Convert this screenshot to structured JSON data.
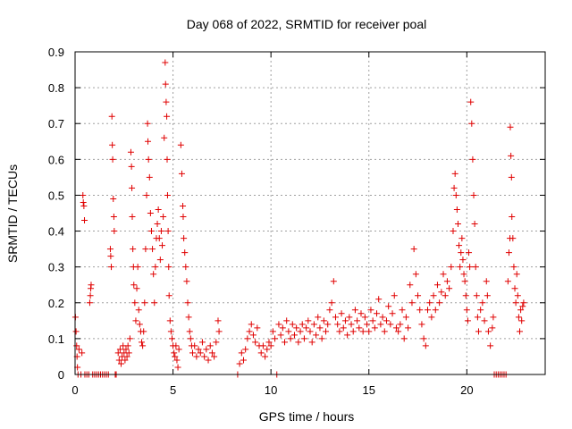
{
  "chart_data": {
    "type": "scatter",
    "title": "Day 068 of 2022, SRMTID for receiver poal",
    "xlabel": "GPS time / hours",
    "ylabel": "SRMTID / TECUs",
    "xlim": [
      0,
      24
    ],
    "ylim": [
      0,
      0.9
    ],
    "x_ticks": [
      {
        "value": 0,
        "label": "0"
      },
      {
        "value": 5,
        "label": "5"
      },
      {
        "value": 10,
        "label": "10"
      },
      {
        "value": 15,
        "label": "15"
      },
      {
        "value": 20,
        "label": "20"
      }
    ],
    "y_ticks": [
      {
        "value": 0,
        "label": "0"
      },
      {
        "value": 0.1,
        "label": "0.1"
      },
      {
        "value": 0.2,
        "label": "0.2"
      },
      {
        "value": 0.3,
        "label": "0.3"
      },
      {
        "value": 0.4,
        "label": "0.4"
      },
      {
        "value": 0.5,
        "label": "0.5"
      },
      {
        "value": 0.6,
        "label": "0.6"
      },
      {
        "value": 0.7,
        "label": "0.7"
      },
      {
        "value": 0.8,
        "label": "0.8"
      },
      {
        "value": 0.9,
        "label": "0.9"
      }
    ],
    "grid": true,
    "marker": "plus",
    "series": [
      {
        "name": "SRMTID",
        "color": "#e00000",
        "points": [
          [
            0.02,
            0.16
          ],
          [
            0.05,
            0.12
          ],
          [
            0.08,
            0.08
          ],
          [
            0.1,
            0.05
          ],
          [
            0.12,
            0.02
          ],
          [
            0.15,
            0.0
          ],
          [
            0.2,
            0.07
          ],
          [
            0.3,
            0.0
          ],
          [
            0.35,
            0.06
          ],
          [
            0.4,
            0.5
          ],
          [
            0.42,
            0.48
          ],
          [
            0.45,
            0.47
          ],
          [
            0.48,
            0.43
          ],
          [
            0.5,
            0.0
          ],
          [
            0.6,
            0.0
          ],
          [
            0.7,
            0.0
          ],
          [
            0.75,
            0.2
          ],
          [
            0.78,
            0.22
          ],
          [
            0.8,
            0.24
          ],
          [
            0.82,
            0.25
          ],
          [
            0.9,
            0.0
          ],
          [
            1.0,
            0.0
          ],
          [
            1.1,
            0.0
          ],
          [
            1.2,
            0.0
          ],
          [
            1.3,
            0.0
          ],
          [
            1.4,
            0.0
          ],
          [
            1.5,
            0.0
          ],
          [
            1.6,
            0.0
          ],
          [
            1.7,
            0.0
          ],
          [
            1.8,
            0.35
          ],
          [
            1.82,
            0.33
          ],
          [
            1.85,
            0.3
          ],
          [
            1.88,
            0.72
          ],
          [
            1.9,
            0.64
          ],
          [
            1.92,
            0.6
          ],
          [
            1.95,
            0.49
          ],
          [
            1.98,
            0.44
          ],
          [
            2.0,
            0.4
          ],
          [
            2.05,
            0.0
          ],
          [
            2.1,
            0.0
          ],
          [
            2.2,
            0.06
          ],
          [
            2.25,
            0.04
          ],
          [
            2.3,
            0.07
          ],
          [
            2.35,
            0.03
          ],
          [
            2.4,
            0.05
          ],
          [
            2.45,
            0.08
          ],
          [
            2.5,
            0.06
          ],
          [
            2.55,
            0.04
          ],
          [
            2.6,
            0.07
          ],
          [
            2.65,
            0.05
          ],
          [
            2.7,
            0.08
          ],
          [
            2.75,
            0.06
          ],
          [
            2.8,
            0.1
          ],
          [
            2.85,
            0.62
          ],
          [
            2.88,
            0.58
          ],
          [
            2.9,
            0.52
          ],
          [
            2.92,
            0.44
          ],
          [
            2.95,
            0.35
          ],
          [
            2.98,
            0.3
          ],
          [
            3.0,
            0.25
          ],
          [
            3.05,
            0.2
          ],
          [
            3.1,
            0.15
          ],
          [
            3.15,
            0.24
          ],
          [
            3.2,
            0.3
          ],
          [
            3.25,
            0.18
          ],
          [
            3.3,
            0.14
          ],
          [
            3.35,
            0.12
          ],
          [
            3.4,
            0.09
          ],
          [
            3.45,
            0.08
          ],
          [
            3.5,
            0.12
          ],
          [
            3.55,
            0.2
          ],
          [
            3.6,
            0.35
          ],
          [
            3.65,
            0.5
          ],
          [
            3.7,
            0.7
          ],
          [
            3.72,
            0.65
          ],
          [
            3.75,
            0.6
          ],
          [
            3.8,
            0.55
          ],
          [
            3.85,
            0.45
          ],
          [
            3.9,
            0.4
          ],
          [
            3.95,
            0.35
          ],
          [
            4.0,
            0.28
          ],
          [
            4.05,
            0.2
          ],
          [
            4.1,
            0.3
          ],
          [
            4.15,
            0.38
          ],
          [
            4.2,
            0.42
          ],
          [
            4.25,
            0.46
          ],
          [
            4.3,
            0.38
          ],
          [
            4.35,
            0.32
          ],
          [
            4.4,
            0.4
          ],
          [
            4.45,
            0.36
          ],
          [
            4.5,
            0.44
          ],
          [
            4.55,
            0.66
          ],
          [
            4.6,
            0.87
          ],
          [
            4.62,
            0.81
          ],
          [
            4.65,
            0.76
          ],
          [
            4.68,
            0.72
          ],
          [
            4.7,
            0.6
          ],
          [
            4.72,
            0.5
          ],
          [
            4.75,
            0.4
          ],
          [
            4.78,
            0.3
          ],
          [
            4.8,
            0.22
          ],
          [
            4.85,
            0.15
          ],
          [
            4.9,
            0.12
          ],
          [
            4.95,
            0.1
          ],
          [
            5.0,
            0.08
          ],
          [
            5.05,
            0.06
          ],
          [
            5.1,
            0.05
          ],
          [
            5.15,
            0.08
          ],
          [
            5.2,
            0.04
          ],
          [
            5.25,
            0.02
          ],
          [
            5.3,
            0.07
          ],
          [
            5.4,
            0.64
          ],
          [
            5.45,
            0.56
          ],
          [
            5.5,
            0.47
          ],
          [
            5.52,
            0.44
          ],
          [
            5.55,
            0.38
          ],
          [
            5.6,
            0.34
          ],
          [
            5.65,
            0.3
          ],
          [
            5.7,
            0.26
          ],
          [
            5.75,
            0.2
          ],
          [
            5.8,
            0.16
          ],
          [
            5.85,
            0.12
          ],
          [
            5.9,
            0.1
          ],
          [
            5.95,
            0.08
          ],
          [
            6.0,
            0.06
          ],
          [
            6.1,
            0.08
          ],
          [
            6.2,
            0.05
          ],
          [
            6.3,
            0.07
          ],
          [
            6.4,
            0.06
          ],
          [
            6.5,
            0.09
          ],
          [
            6.6,
            0.05
          ],
          [
            6.7,
            0.07
          ],
          [
            6.8,
            0.04
          ],
          [
            6.9,
            0.08
          ],
          [
            7.0,
            0.06
          ],
          [
            7.1,
            0.05
          ],
          [
            7.2,
            0.09
          ],
          [
            7.3,
            0.15
          ],
          [
            7.35,
            0.12
          ],
          [
            8.3,
            0.0
          ],
          [
            8.4,
            0.03
          ],
          [
            8.5,
            0.06
          ],
          [
            8.6,
            0.04
          ],
          [
            8.7,
            0.07
          ],
          [
            8.8,
            0.1
          ],
          [
            8.9,
            0.12
          ],
          [
            9.0,
            0.14
          ],
          [
            9.1,
            0.11
          ],
          [
            9.2,
            0.09
          ],
          [
            9.3,
            0.13
          ],
          [
            9.4,
            0.08
          ],
          [
            9.5,
            0.06
          ],
          [
            9.6,
            0.08
          ],
          [
            9.7,
            0.05
          ],
          [
            9.8,
            0.07
          ],
          [
            9.9,
            0.09
          ],
          [
            10.0,
            0.08
          ],
          [
            10.1,
            0.12
          ],
          [
            10.2,
            0.1
          ],
          [
            10.3,
            0.0
          ],
          [
            10.4,
            0.14
          ],
          [
            10.5,
            0.11
          ],
          [
            10.6,
            0.13
          ],
          [
            10.7,
            0.09
          ],
          [
            10.8,
            0.15
          ],
          [
            10.9,
            0.12
          ],
          [
            11.0,
            0.1
          ],
          [
            11.1,
            0.14
          ],
          [
            11.2,
            0.11
          ],
          [
            11.3,
            0.13
          ],
          [
            11.4,
            0.09
          ],
          [
            11.5,
            0.12
          ],
          [
            11.6,
            0.14
          ],
          [
            11.7,
            0.1
          ],
          [
            11.8,
            0.13
          ],
          [
            11.9,
            0.15
          ],
          [
            12.0,
            0.12
          ],
          [
            12.1,
            0.09
          ],
          [
            12.2,
            0.14
          ],
          [
            12.3,
            0.11
          ],
          [
            12.4,
            0.16
          ],
          [
            12.5,
            0.13
          ],
          [
            12.6,
            0.1
          ],
          [
            12.7,
            0.15
          ],
          [
            12.8,
            0.12
          ],
          [
            12.9,
            0.14
          ],
          [
            13.0,
            0.18
          ],
          [
            13.1,
            0.2
          ],
          [
            13.2,
            0.26
          ],
          [
            13.3,
            0.16
          ],
          [
            13.4,
            0.14
          ],
          [
            13.5,
            0.12
          ],
          [
            13.6,
            0.17
          ],
          [
            13.7,
            0.13
          ],
          [
            13.8,
            0.15
          ],
          [
            13.9,
            0.11
          ],
          [
            14.0,
            0.16
          ],
          [
            14.1,
            0.14
          ],
          [
            14.2,
            0.12
          ],
          [
            14.3,
            0.18
          ],
          [
            14.4,
            0.15
          ],
          [
            14.5,
            0.13
          ],
          [
            14.6,
            0.17
          ],
          [
            14.7,
            0.12
          ],
          [
            14.8,
            0.16
          ],
          [
            14.9,
            0.14
          ],
          [
            15.0,
            0.12
          ],
          [
            15.1,
            0.18
          ],
          [
            15.2,
            0.15
          ],
          [
            15.3,
            0.13
          ],
          [
            15.4,
            0.17
          ],
          [
            15.5,
            0.21
          ],
          [
            15.6,
            0.14
          ],
          [
            15.7,
            0.16
          ],
          [
            15.8,
            0.12
          ],
          [
            15.9,
            0.15
          ],
          [
            16.0,
            0.19
          ],
          [
            16.1,
            0.14
          ],
          [
            16.2,
            0.17
          ],
          [
            16.3,
            0.22
          ],
          [
            16.4,
            0.13
          ],
          [
            16.5,
            0.12
          ],
          [
            16.6,
            0.14
          ],
          [
            16.7,
            0.18
          ],
          [
            16.8,
            0.1
          ],
          [
            16.9,
            0.16
          ],
          [
            17.0,
            0.13
          ],
          [
            17.1,
            0.25
          ],
          [
            17.2,
            0.2
          ],
          [
            17.3,
            0.35
          ],
          [
            17.4,
            0.28
          ],
          [
            17.5,
            0.22
          ],
          [
            17.6,
            0.18
          ],
          [
            17.7,
            0.14
          ],
          [
            17.8,
            0.1
          ],
          [
            17.9,
            0.08
          ],
          [
            18.0,
            0.18
          ],
          [
            18.1,
            0.2
          ],
          [
            18.2,
            0.16
          ],
          [
            18.3,
            0.22
          ],
          [
            18.4,
            0.18
          ],
          [
            18.5,
            0.25
          ],
          [
            18.6,
            0.2
          ],
          [
            18.7,
            0.23
          ],
          [
            18.8,
            0.28
          ],
          [
            18.9,
            0.22
          ],
          [
            19.0,
            0.26
          ],
          [
            19.1,
            0.24
          ],
          [
            19.2,
            0.3
          ],
          [
            19.3,
            0.4
          ],
          [
            19.35,
            0.52
          ],
          [
            19.4,
            0.56
          ],
          [
            19.45,
            0.5
          ],
          [
            19.5,
            0.46
          ],
          [
            19.55,
            0.42
          ],
          [
            19.6,
            0.36
          ],
          [
            19.65,
            0.3
          ],
          [
            19.7,
            0.34
          ],
          [
            19.75,
            0.38
          ],
          [
            19.8,
            0.32
          ],
          [
            19.85,
            0.28
          ],
          [
            19.9,
            0.26
          ],
          [
            19.95,
            0.22
          ],
          [
            20.0,
            0.18
          ],
          [
            20.05,
            0.15
          ],
          [
            20.1,
            0.34
          ],
          [
            20.15,
            0.3
          ],
          [
            20.2,
            0.76
          ],
          [
            20.25,
            0.7
          ],
          [
            20.3,
            0.6
          ],
          [
            20.35,
            0.5
          ],
          [
            20.4,
            0.42
          ],
          [
            20.45,
            0.3
          ],
          [
            20.5,
            0.22
          ],
          [
            20.55,
            0.16
          ],
          [
            20.6,
            0.12
          ],
          [
            20.7,
            0.18
          ],
          [
            20.8,
            0.2
          ],
          [
            20.9,
            0.15
          ],
          [
            21.0,
            0.26
          ],
          [
            21.05,
            0.22
          ],
          [
            21.1,
            0.12
          ],
          [
            21.2,
            0.08
          ],
          [
            21.3,
            0.13
          ],
          [
            21.35,
            0.16
          ],
          [
            21.4,
            0.0
          ],
          [
            21.5,
            0.0
          ],
          [
            21.6,
            0.0
          ],
          [
            21.7,
            0.0
          ],
          [
            21.8,
            0.0
          ],
          [
            21.9,
            0.0
          ],
          [
            22.0,
            0.0
          ],
          [
            22.1,
            0.26
          ],
          [
            22.15,
            0.34
          ],
          [
            22.2,
            0.38
          ],
          [
            22.22,
            0.69
          ],
          [
            22.25,
            0.61
          ],
          [
            22.28,
            0.55
          ],
          [
            22.3,
            0.44
          ],
          [
            22.35,
            0.38
          ],
          [
            22.4,
            0.3
          ],
          [
            22.45,
            0.24
          ],
          [
            22.5,
            0.2
          ],
          [
            22.55,
            0.28
          ],
          [
            22.6,
            0.22
          ],
          [
            22.65,
            0.16
          ],
          [
            22.7,
            0.12
          ],
          [
            22.75,
            0.18
          ],
          [
            22.8,
            0.15
          ],
          [
            22.85,
            0.19
          ],
          [
            22.9,
            0.2
          ]
        ]
      }
    ]
  }
}
